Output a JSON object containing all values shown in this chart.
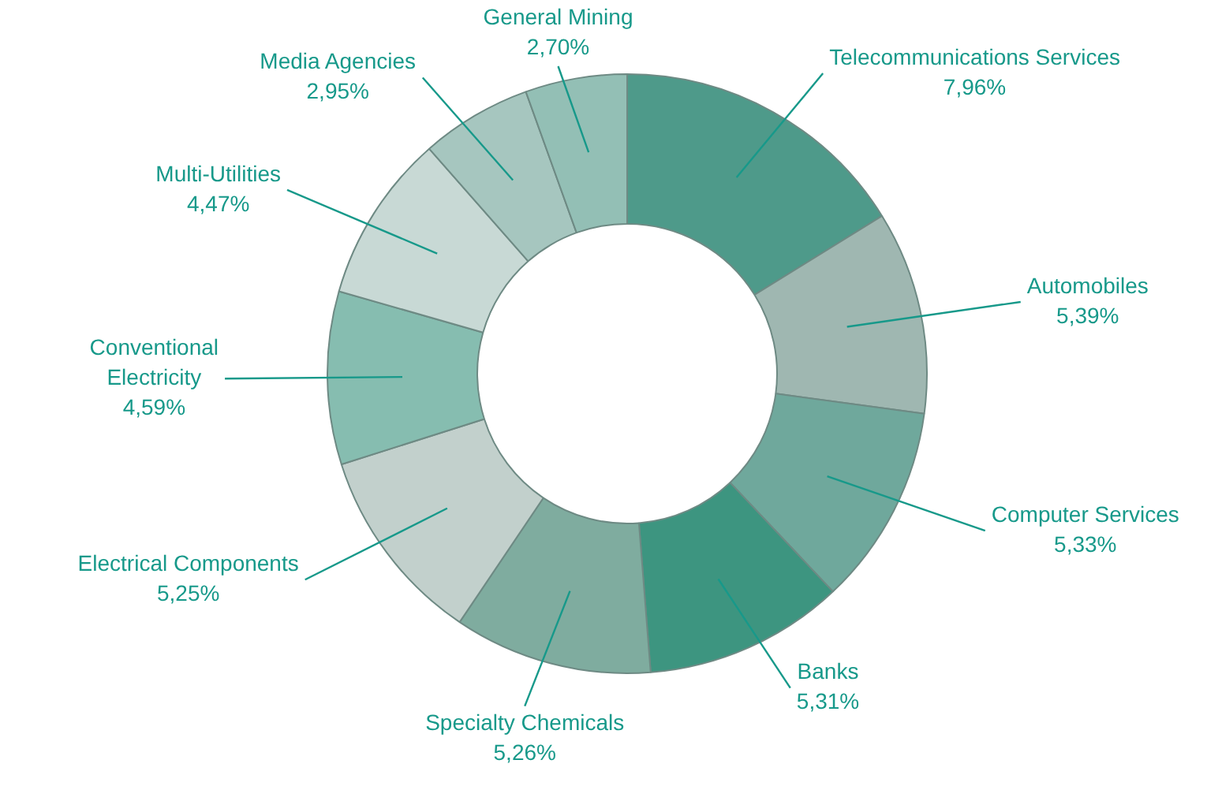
{
  "chart_data": {
    "type": "donut",
    "categories": [
      "Telecommunications Services",
      "Automobiles",
      "Computer Services",
      "Banks",
      "Specialty Chemicals",
      "Electrical Components",
      "Conventional Electricity",
      "Multi-Utilities",
      "Media Agencies",
      "General Mining"
    ],
    "values": [
      7.96,
      5.39,
      5.33,
      5.31,
      5.26,
      5.25,
      4.59,
      4.47,
      2.95,
      2.7
    ],
    "value_labels": [
      "7,96%",
      "5,39%",
      "5,33%",
      "5,31%",
      "5,26%",
      "5,25%",
      "4,59%",
      "4,47%",
      "2,95%",
      "2,70%"
    ],
    "colors": [
      "#4e9a8a",
      "#9fb7b1",
      "#6fa89c",
      "#3d9580",
      "#7fac9f",
      "#c2d0cc",
      "#86bdb0",
      "#c8d9d5",
      "#a6c6bf",
      "#93bfb5"
    ]
  }
}
